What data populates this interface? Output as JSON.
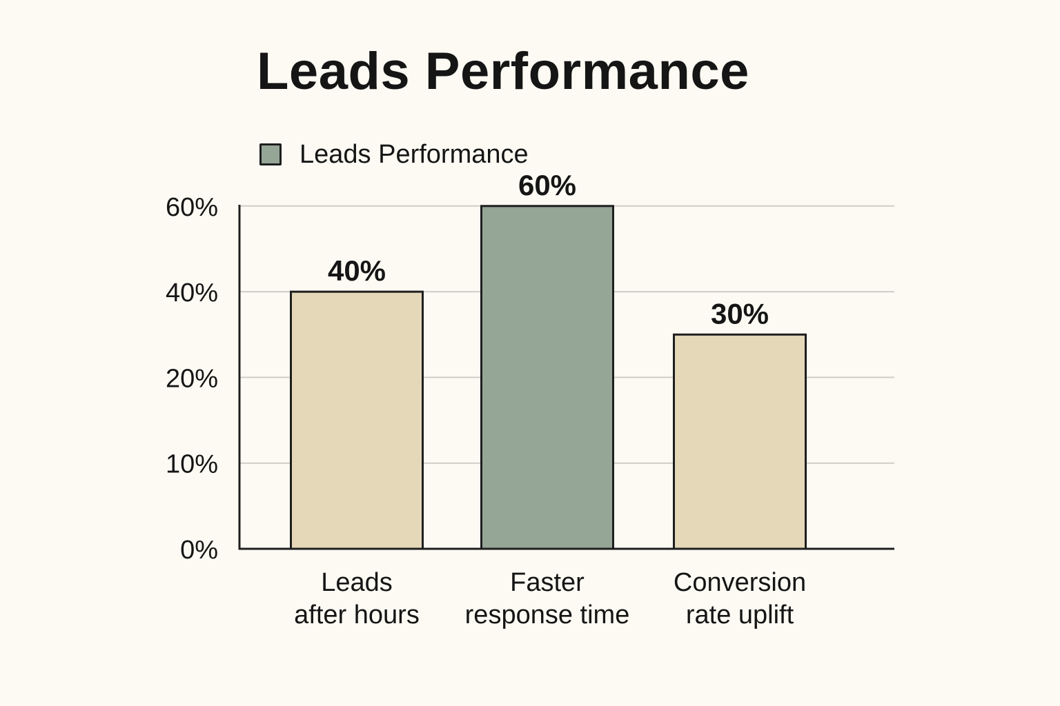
{
  "chart_data": {
    "type": "bar",
    "title": "Leads Performance",
    "legend": [
      {
        "label": "Leads Performance",
        "color": "#95a697"
      }
    ],
    "legend_position": "top-left",
    "categories": [
      [
        "Leads",
        "after hours"
      ],
      [
        "Faster",
        "response time"
      ],
      [
        "Conversion",
        "rate uplift"
      ]
    ],
    "series": [
      {
        "name": "Leads Performance",
        "values": [
          40,
          60,
          30
        ],
        "value_labels": [
          "40%",
          "60%",
          "30%"
        ],
        "colors": [
          "#e4d8b9",
          "#95a697",
          "#e4d8b9"
        ]
      }
    ],
    "y_ticks": [
      {
        "label": "0%",
        "level": 0
      },
      {
        "label": "10%",
        "level": 1
      },
      {
        "label": "20%",
        "level": 2
      },
      {
        "label": "40%",
        "level": 3
      },
      {
        "label": "60%",
        "level": 4
      }
    ],
    "grid": true,
    "xlabel": "",
    "ylabel": ""
  }
}
